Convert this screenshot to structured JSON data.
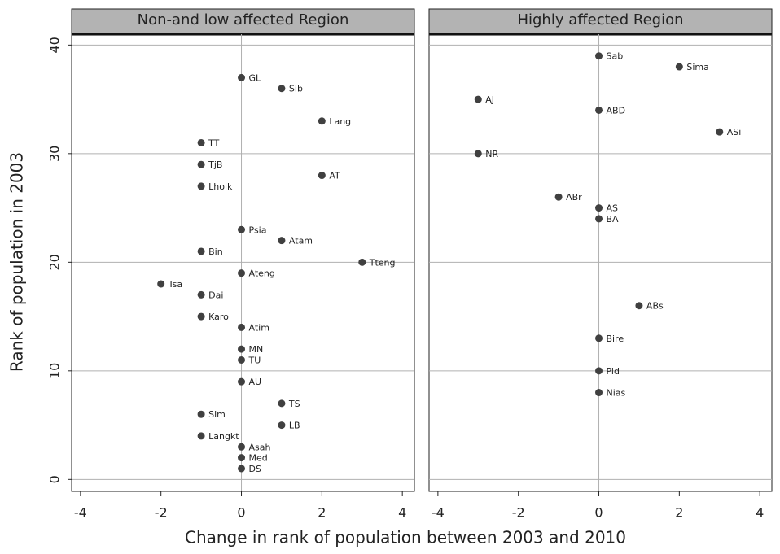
{
  "chart_data": [
    {
      "type": "scatter",
      "title": "Non-and low affected Region",
      "xlabel": "Change in rank of population between 2003 and 2010",
      "ylabel": "Rank of population in 2003",
      "labels": [
        "GL",
        "Sib",
        "Lang",
        "TT",
        "TjB",
        "AT",
        "Lhoik",
        "Psia",
        "Atam",
        "Bin",
        "Tteng",
        "Ateng",
        "Tsa",
        "Dai",
        "Karo",
        "Atim",
        "MN",
        "TU",
        "AU",
        "TS",
        "Sim",
        "LB",
        "Langkt",
        "Asah",
        "Med",
        "DS"
      ],
      "x": [
        0,
        1,
        2,
        -1,
        -1,
        2,
        -1,
        0,
        1,
        -1,
        3,
        0,
        -2,
        -1,
        -1,
        0,
        0,
        0,
        0,
        1,
        -1,
        1,
        -1,
        0,
        0,
        0
      ],
      "y": [
        37,
        36,
        33,
        31,
        29,
        28,
        27,
        23,
        22,
        21,
        20,
        19,
        18,
        17,
        15,
        14,
        12,
        11,
        9,
        7,
        6,
        5,
        4,
        3,
        2,
        1
      ],
      "color": "#404040",
      "xlim": [
        -4.22,
        4.3
      ],
      "ylim": [
        -1.1,
        41
      ],
      "xticks": [
        -4,
        -2,
        0,
        2,
        4
      ],
      "yticks": [
        0,
        10,
        20,
        30,
        40
      ],
      "grid": true,
      "xline": 0,
      "show_ytick_labels": true
    },
    {
      "type": "scatter",
      "title": "Highly affected Region",
      "labels": [
        "Sab",
        "Sima",
        "AJ",
        "ABD",
        "ASi",
        "NR",
        "ABr",
        "AS",
        "BA",
        "ABs",
        "Bire",
        "Pid",
        "Nias"
      ],
      "x": [
        0,
        2,
        -3,
        0,
        3,
        -3,
        -1,
        0,
        0,
        1,
        0,
        0,
        0
      ],
      "y": [
        39,
        38,
        35,
        34,
        32,
        30,
        26,
        25,
        24,
        16,
        13,
        10,
        8
      ],
      "color": "#404040",
      "xlim": [
        -4.22,
        4.3
      ],
      "ylim": [
        -1.1,
        41
      ],
      "xticks": [
        -4,
        -2,
        0,
        2,
        4
      ],
      "yticks": [
        0,
        10,
        20,
        30,
        40
      ],
      "grid": true,
      "xline": 0,
      "show_ytick_labels": false
    }
  ]
}
